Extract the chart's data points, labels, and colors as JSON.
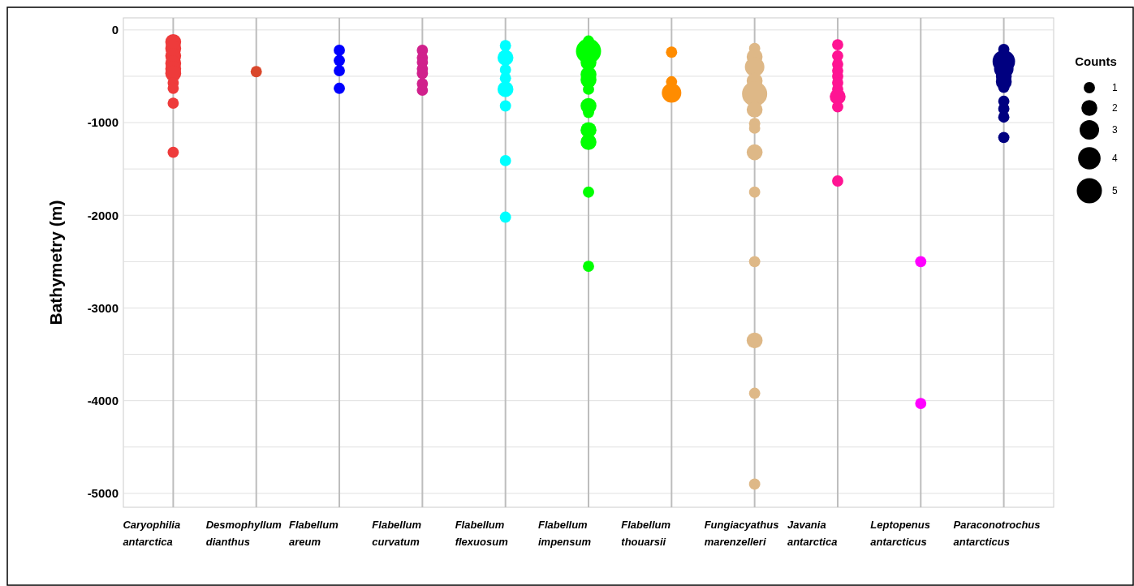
{
  "chart_data": {
    "type": "bubble",
    "ylabel": "Bathymetry (m)",
    "legend_title": "Counts",
    "grid": true,
    "marker": "circle",
    "categories": [
      "Caryophilia antarctica",
      "Desmophyllum dianthus",
      "Flabellum areum",
      "Flabellum curvatum",
      "Flabellum flexuosum",
      "Flabellum impensum",
      "Flabellum thouarsii",
      "Fungiacyathus marenzelleri",
      "Javania antarctica",
      "Leptopenus antarcticus",
      "Paraconotrochus antarcticus"
    ],
    "ylim": [
      -5150,
      130
    ],
    "yticks": [
      0,
      {
        "value": -500,
        "label": null
      },
      -1000,
      {
        "value": -1500,
        "label": null
      },
      -2000,
      {
        "value": -2500,
        "label": null
      },
      -3000,
      {
        "value": -3500,
        "label": null
      },
      -4000,
      {
        "value": -4500,
        "label": null
      },
      -5000
    ],
    "size_legend": [
      1,
      2,
      3,
      4,
      5
    ],
    "series": [
      {
        "color": "#ee3b3b",
        "x": [
          "Caryophilia antarctica",
          "Caryophilia antarctica",
          "Caryophilia antarctica",
          "Caryophilia antarctica",
          "Caryophilia antarctica",
          "Caryophilia antarctica",
          "Caryophilia antarctica",
          "Caryophilia antarctica",
          "Caryophilia antarctica",
          "Caryophilia antarctica"
        ],
        "values": [
          -130,
          -200,
          -280,
          -360,
          -420,
          -470,
          -570,
          -630,
          -790,
          -1320
        ],
        "sizes": [
          2,
          2,
          2,
          2,
          2,
          2,
          1,
          1,
          1,
          1
        ]
      },
      {
        "color": "#d9472b",
        "x": [
          "Desmophyllum dianthus"
        ],
        "values": [
          -450
        ],
        "sizes": [
          1
        ]
      },
      {
        "color": "#0000ff",
        "x": [
          "Flabellum areum",
          "Flabellum areum",
          "Flabellum areum",
          "Flabellum areum"
        ],
        "values": [
          -220,
          -330,
          -440,
          -630
        ],
        "sizes": [
          1,
          1,
          1,
          1
        ]
      },
      {
        "color": "#d0208c",
        "x": [
          "Flabellum curvatum",
          "Flabellum curvatum",
          "Flabellum curvatum",
          "Flabellum curvatum",
          "Flabellum curvatum",
          "Flabellum curvatum",
          "Flabellum curvatum"
        ],
        "values": [
          -220,
          -300,
          -350,
          -420,
          -470,
          -580,
          -650
        ],
        "sizes": [
          1,
          1,
          1,
          1,
          1,
          1,
          1
        ]
      },
      {
        "color": "#00ffff",
        "x": [
          "Flabellum flexuosum",
          "Flabellum flexuosum",
          "Flabellum flexuosum",
          "Flabellum flexuosum",
          "Flabellum flexuosum",
          "Flabellum flexuosum",
          "Flabellum flexuosum",
          "Flabellum flexuosum"
        ],
        "values": [
          -170,
          -300,
          -430,
          -520,
          -640,
          -820,
          -1410,
          -2020
        ],
        "sizes": [
          1,
          2,
          1,
          1,
          2,
          1,
          1,
          1
        ]
      },
      {
        "color": "#00ff00",
        "x": [
          "Flabellum impensum",
          "Flabellum impensum",
          "Flabellum impensum",
          "Flabellum impensum",
          "Flabellum impensum",
          "Flabellum impensum",
          "Flabellum impensum",
          "Flabellum impensum",
          "Flabellum impensum",
          "Flabellum impensum",
          "Flabellum impensum",
          "Flabellum impensum"
        ],
        "values": [
          -120,
          -230,
          -350,
          -480,
          -540,
          -640,
          -820,
          -890,
          -1080,
          -1210,
          -1750,
          -2550
        ],
        "sizes": [
          1,
          5,
          2,
          2,
          2,
          1,
          2,
          1,
          2,
          2,
          1,
          1
        ]
      },
      {
        "color": "#ff8c00",
        "x": [
          "Flabellum thouarsii",
          "Flabellum thouarsii",
          "Flabellum thouarsii"
        ],
        "values": [
          -240,
          -560,
          -680
        ],
        "sizes": [
          1,
          1,
          3
        ]
      },
      {
        "color": "#deb887",
        "x": [
          "Fungiacyathus marenzelleri",
          "Fungiacyathus marenzelleri",
          "Fungiacyathus marenzelleri",
          "Fungiacyathus marenzelleri",
          "Fungiacyathus marenzelleri",
          "Fungiacyathus marenzelleri",
          "Fungiacyathus marenzelleri",
          "Fungiacyathus marenzelleri",
          "Fungiacyathus marenzelleri",
          "Fungiacyathus marenzelleri",
          "Fungiacyathus marenzelleri",
          "Fungiacyathus marenzelleri",
          "Fungiacyathus marenzelleri",
          "Fungiacyathus marenzelleri"
        ],
        "values": [
          -200,
          -290,
          -400,
          -550,
          -690,
          -860,
          -1010,
          -1060,
          -1320,
          -1750,
          -2500,
          -3350,
          -3920,
          -4900
        ],
        "sizes": [
          1,
          2,
          3,
          2,
          5,
          2,
          1,
          1,
          2,
          1,
          1,
          2,
          1,
          1
        ]
      },
      {
        "color": "#ff1493",
        "x": [
          "Javania antarctica",
          "Javania antarctica",
          "Javania antarctica",
          "Javania antarctica",
          "Javania antarctica",
          "Javania antarctica",
          "Javania antarctica",
          "Javania antarctica",
          "Javania antarctica",
          "Javania antarctica"
        ],
        "values": [
          -160,
          -280,
          -370,
          -440,
          -500,
          -570,
          -640,
          -720,
          -830,
          -1630
        ],
        "sizes": [
          1,
          1,
          1,
          1,
          1,
          1,
          1,
          2,
          1,
          1
        ]
      },
      {
        "color": "#ff00ff",
        "x": [
          "Leptopenus antarcticus",
          "Leptopenus antarcticus"
        ],
        "values": [
          -2500,
          -4030
        ],
        "sizes": [
          1,
          1
        ]
      },
      {
        "color": "#000080",
        "x": [
          "Paraconotrochus antarcticus",
          "Paraconotrochus antarcticus",
          "Paraconotrochus antarcticus",
          "Paraconotrochus antarcticus",
          "Paraconotrochus antarcticus",
          "Paraconotrochus antarcticus",
          "Paraconotrochus antarcticus",
          "Paraconotrochus antarcticus",
          "Paraconotrochus antarcticus",
          "Paraconotrochus antarcticus"
        ],
        "values": [
          -210,
          -340,
          -420,
          -500,
          -560,
          -620,
          -770,
          -850,
          -940,
          -1160
        ],
        "sizes": [
          1,
          4,
          3,
          2,
          2,
          1,
          1,
          1,
          1,
          1
        ]
      }
    ]
  }
}
